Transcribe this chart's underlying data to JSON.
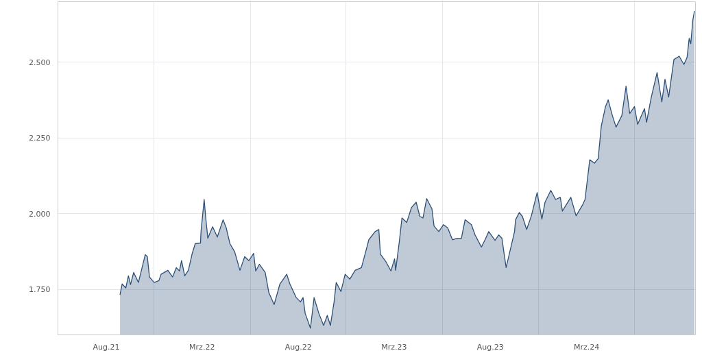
{
  "chart_data": {
    "type": "area",
    "color": "#2d5078",
    "grid": true,
    "line_style": "solid",
    "xlim": [
      "2021-05-31",
      "2024-09-24"
    ],
    "xticks": [
      {
        "value": "2021-08-31",
        "label": "Aug.21"
      },
      {
        "value": "2022-03-01",
        "label": "Mrz.22"
      },
      {
        "value": "2022-08-31",
        "label": "Aug.22"
      },
      {
        "value": "2023-03-01",
        "label": "Mrz.23"
      },
      {
        "value": "2023-08-31",
        "label": "Aug.23"
      },
      {
        "value": "2024-03-01",
        "label": "Mrz.24"
      },
      {
        "value": "2021-11-30",
        "label": null
      },
      {
        "value": "2022-06-01",
        "label": null
      },
      {
        "value": "2022-11-30",
        "label": null
      },
      {
        "value": "2023-06-01",
        "label": null
      },
      {
        "value": "2023-11-30",
        "label": null
      },
      {
        "value": "2024-05-31",
        "label": null
      }
    ],
    "ylim": [
      1600,
      2700
    ],
    "yticks": [
      {
        "value": 1750,
        "label": "1.750"
      },
      {
        "value": 2000,
        "label": "2.000"
      },
      {
        "value": 2250,
        "label": "2.250"
      },
      {
        "value": 2500,
        "label": "2.500"
      }
    ],
    "x": [
      "2021-09-26",
      "2021-09-30",
      "2021-10-07",
      "2021-10-12",
      "2021-10-16",
      "2021-10-22",
      "2021-10-31",
      "2021-11-07",
      "2021-11-13",
      "2021-11-17",
      "2021-11-21",
      "2021-11-30",
      "2021-12-09",
      "2021-12-13",
      "2021-12-26",
      "2022-01-04",
      "2022-01-11",
      "2022-01-17",
      "2022-01-21",
      "2022-01-27",
      "2022-02-03",
      "2022-02-10",
      "2022-02-16",
      "2022-02-26",
      "2022-02-27",
      "2022-03-05",
      "2022-03-08",
      "2022-03-12",
      "2022-03-21",
      "2022-03-30",
      "2022-04-10",
      "2022-04-16",
      "2022-04-23",
      "2022-05-02",
      "2022-05-12",
      "2022-05-21",
      "2022-05-29",
      "2022-06-07",
      "2022-06-11",
      "2022-06-18",
      "2022-06-29",
      "2022-07-06",
      "2022-07-16",
      "2022-07-27",
      "2022-08-09",
      "2022-08-15",
      "2022-08-27",
      "2022-09-04",
      "2022-09-09",
      "2022-09-13",
      "2022-09-23",
      "2022-09-30",
      "2022-10-09",
      "2022-10-18",
      "2022-10-25",
      "2022-10-31",
      "2022-11-07",
      "2022-11-11",
      "2022-11-20",
      "2022-11-28",
      "2022-12-07",
      "2022-12-17",
      "2022-12-29",
      "2023-01-06",
      "2023-01-12",
      "2023-01-24",
      "2023-01-31",
      "2023-02-03",
      "2023-02-14",
      "2023-02-23",
      "2023-03-02",
      "2023-03-04",
      "2023-03-11",
      "2023-03-16",
      "2023-03-25",
      "2023-04-03",
      "2023-04-12",
      "2023-04-19",
      "2023-04-25",
      "2023-05-02",
      "2023-05-12",
      "2023-05-16",
      "2023-05-25",
      "2023-06-03",
      "2023-06-11",
      "2023-06-20",
      "2023-06-29",
      "2023-07-07",
      "2023-07-14",
      "2023-07-26",
      "2023-08-02",
      "2023-08-14",
      "2023-08-21",
      "2023-08-28",
      "2023-09-09",
      "2023-09-16",
      "2023-09-22",
      "2023-09-30",
      "2023-10-16",
      "2023-10-18",
      "2023-10-25",
      "2023-10-31",
      "2023-11-08",
      "2023-11-17",
      "2023-11-28",
      "2023-12-07",
      "2023-12-13",
      "2023-12-24",
      "2024-01-02",
      "2024-01-11",
      "2024-01-15",
      "2024-01-31",
      "2024-02-10",
      "2024-02-23",
      "2024-02-27",
      "2024-03-07",
      "2024-03-16",
      "2024-03-23",
      "2024-03-29",
      "2024-04-06",
      "2024-04-11",
      "2024-04-19",
      "2024-04-26",
      "2024-05-07",
      "2024-05-15",
      "2024-05-22",
      "2024-05-31",
      "2024-06-06",
      "2024-06-19",
      "2024-06-23",
      "2024-07-02",
      "2024-07-13",
      "2024-07-22",
      "2024-07-28",
      "2024-08-04",
      "2024-08-14",
      "2024-08-24",
      "2024-09-02",
      "2024-09-08",
      "2024-09-12",
      "2024-09-15",
      "2024-09-19",
      "2024-09-22"
    ],
    "values": [
      1732,
      1768,
      1755,
      1795,
      1766,
      1806,
      1773,
      1822,
      1865,
      1858,
      1791,
      1773,
      1779,
      1800,
      1813,
      1791,
      1822,
      1811,
      1845,
      1795,
      1813,
      1867,
      1901,
      1903,
      1941,
      2047,
      1986,
      1919,
      1957,
      1923,
      1980,
      1953,
      1901,
      1874,
      1813,
      1858,
      1845,
      1869,
      1811,
      1833,
      1806,
      1739,
      1700,
      1768,
      1800,
      1768,
      1723,
      1709,
      1723,
      1671,
      1622,
      1723,
      1671,
      1631,
      1664,
      1631,
      1709,
      1773,
      1743,
      1800,
      1784,
      1813,
      1822,
      1874,
      1914,
      1941,
      1948,
      1867,
      1840,
      1811,
      1851,
      1813,
      1908,
      1986,
      1971,
      2020,
      2038,
      1991,
      1986,
      2050,
      2016,
      1959,
      1941,
      1964,
      1953,
      1914,
      1919,
      1919,
      1980,
      1964,
      1930,
      1890,
      1914,
      1941,
      1912,
      1930,
      1919,
      1822,
      1941,
      1980,
      2004,
      1991,
      1948,
      1993,
      2070,
      1982,
      2038,
      2077,
      2047,
      2054,
      2009,
      2054,
      1993,
      2031,
      2047,
      2178,
      2167,
      2182,
      2290,
      2354,
      2376,
      2324,
      2286,
      2324,
      2421,
      2331,
      2354,
      2295,
      2347,
      2302,
      2385,
      2466,
      2369,
      2444,
      2385,
      2509,
      2520,
      2493,
      2516,
      2579,
      2561,
      2640,
      2669
    ]
  }
}
